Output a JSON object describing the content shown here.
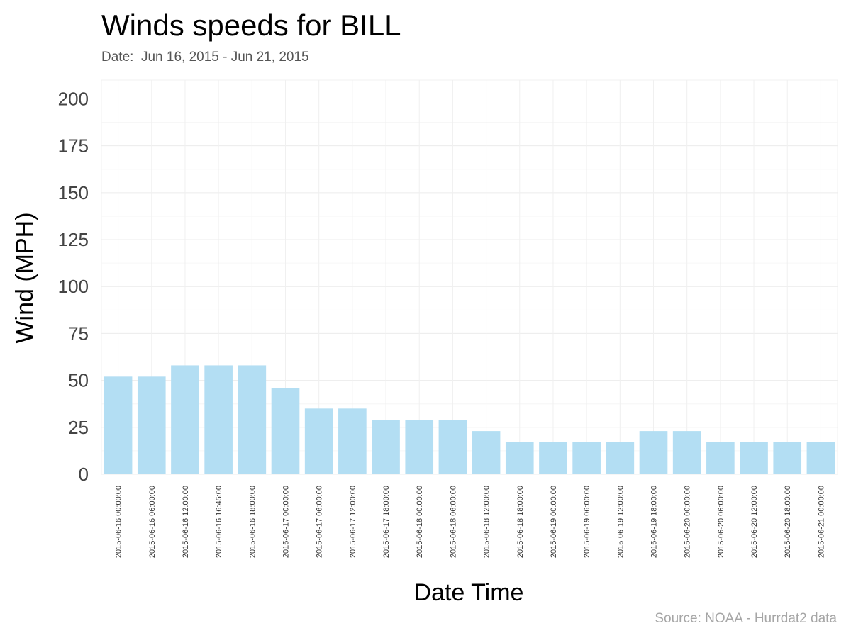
{
  "chart_data": {
    "type": "bar",
    "title": "Winds speeds for BILL",
    "subtitle": "Date:  Jun 16, 2015 - Jun 21, 2015",
    "caption": "Source: NOAA - Hurrdat2 data",
    "xlabel": "Date Time",
    "ylabel": "Wind (MPH)",
    "ylim": [
      0,
      210
    ],
    "yticks": [
      0,
      25,
      50,
      75,
      100,
      125,
      150,
      175,
      200
    ],
    "grid": true,
    "bar_color": "#b3def3",
    "categories": [
      "2015-06-16 00:00:00",
      "2015-06-16 06:00:00",
      "2015-06-16 12:00:00",
      "2015-06-16 16:45:00",
      "2015-06-16 18:00:00",
      "2015-06-17 00:00:00",
      "2015-06-17 06:00:00",
      "2015-06-17 12:00:00",
      "2015-06-17 18:00:00",
      "2015-06-18 00:00:00",
      "2015-06-18 06:00:00",
      "2015-06-18 12:00:00",
      "2015-06-18 18:00:00",
      "2015-06-19 00:00:00",
      "2015-06-19 06:00:00",
      "2015-06-19 12:00:00",
      "2015-06-19 18:00:00",
      "2015-06-20 00:00:00",
      "2015-06-20 06:00:00",
      "2015-06-20 12:00:00",
      "2015-06-20 18:00:00",
      "2015-06-21 00:00:00"
    ],
    "values": [
      52,
      52,
      58,
      58,
      58,
      46,
      35,
      35,
      29,
      29,
      29,
      23,
      17,
      17,
      17,
      17,
      23,
      23,
      17,
      17,
      17,
      17
    ]
  }
}
